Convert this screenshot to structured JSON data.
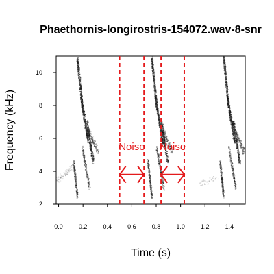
{
  "chart_data": {
    "type": "spectrogram",
    "title": "Phaethornis-longirostris-154072.wav-8-snr",
    "xlabel": "Time (s)",
    "ylabel": "Frequency (kHz)",
    "xlim": [
      -0.02,
      1.53
    ],
    "ylim": [
      2,
      11
    ],
    "x_ticks": [
      "0.0",
      "0.2",
      "0.4",
      "0.6",
      "0.8",
      "1.0",
      "1.2",
      "1.4"
    ],
    "y_ticks": [
      "2",
      "4",
      "6",
      "8",
      "10"
    ],
    "grid": false,
    "noise_windows": [
      {
        "label": "Noise",
        "start": 0.5,
        "end": 0.7
      },
      {
        "label": "Noise",
        "start": 0.84,
        "end": 1.03
      }
    ],
    "signal_window": {
      "start": 0.7,
      "end": 0.84
    },
    "arrow_frequency_khz": 3.8,
    "label_frequency_khz": 5.3,
    "marker_color": "#e41a1c",
    "calls_start_s": [
      0.16,
      0.77,
      1.36
    ]
  }
}
